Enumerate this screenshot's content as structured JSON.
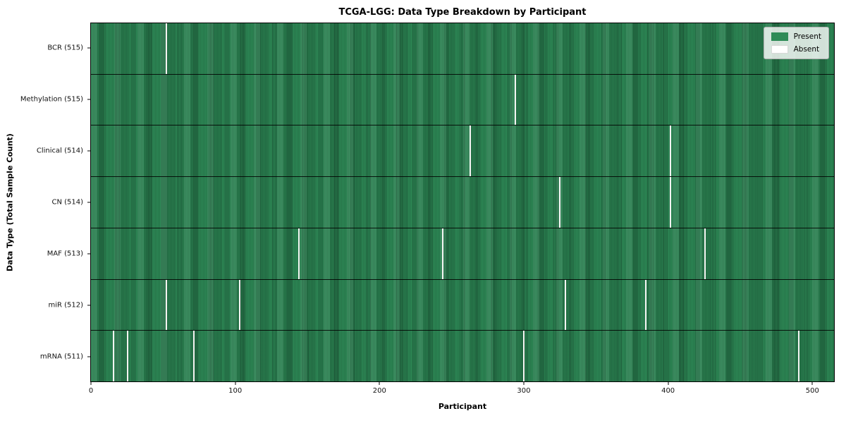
{
  "figure": {
    "title": "TCGA-LGG: Data Type Breakdown by Participant",
    "xlabel": "Participant",
    "ylabel": "Data Type (Total Sample Count)"
  },
  "legend": {
    "items": [
      {
        "label": "Present",
        "color": "#2e8b57"
      },
      {
        "label": "Absent",
        "color": "#ffffff"
      }
    ]
  },
  "chart_data": {
    "type": "heatmap",
    "title": "TCGA-LGG: Data Type Breakdown by Participant",
    "xlabel": "Participant",
    "ylabel": "Data Type (Total Sample Count)",
    "n_participants": 516,
    "x_ticks": [
      0,
      100,
      200,
      300,
      400,
      500
    ],
    "xlim": [
      -0.5,
      515.5
    ],
    "legend_position": "upper right",
    "colors": {
      "present": "#2e8b57",
      "absent": "#ffffff"
    },
    "rows": [
      {
        "data_type": "BCR",
        "label": "BCR (515)",
        "present_count": 515,
        "absent_participants": [
          52
        ]
      },
      {
        "data_type": "Methylation",
        "label": "Methylation (515)",
        "present_count": 515,
        "absent_participants": [
          294
        ]
      },
      {
        "data_type": "Clinical",
        "label": "Clinical (514)",
        "present_count": 514,
        "absent_participants": [
          263,
          402
        ]
      },
      {
        "data_type": "CN",
        "label": "CN (514)",
        "present_count": 514,
        "absent_participants": [
          325,
          402
        ]
      },
      {
        "data_type": "MAF",
        "label": "MAF (513)",
        "present_count": 513,
        "absent_participants": [
          144,
          244,
          426
        ]
      },
      {
        "data_type": "miR",
        "label": "miR (512)",
        "present_count": 512,
        "absent_participants": [
          52,
          103,
          329,
          385
        ]
      },
      {
        "data_type": "mRNA",
        "label": "mRNA (511)",
        "present_count": 511,
        "absent_participants": [
          15,
          25,
          71,
          300,
          491
        ]
      }
    ]
  }
}
